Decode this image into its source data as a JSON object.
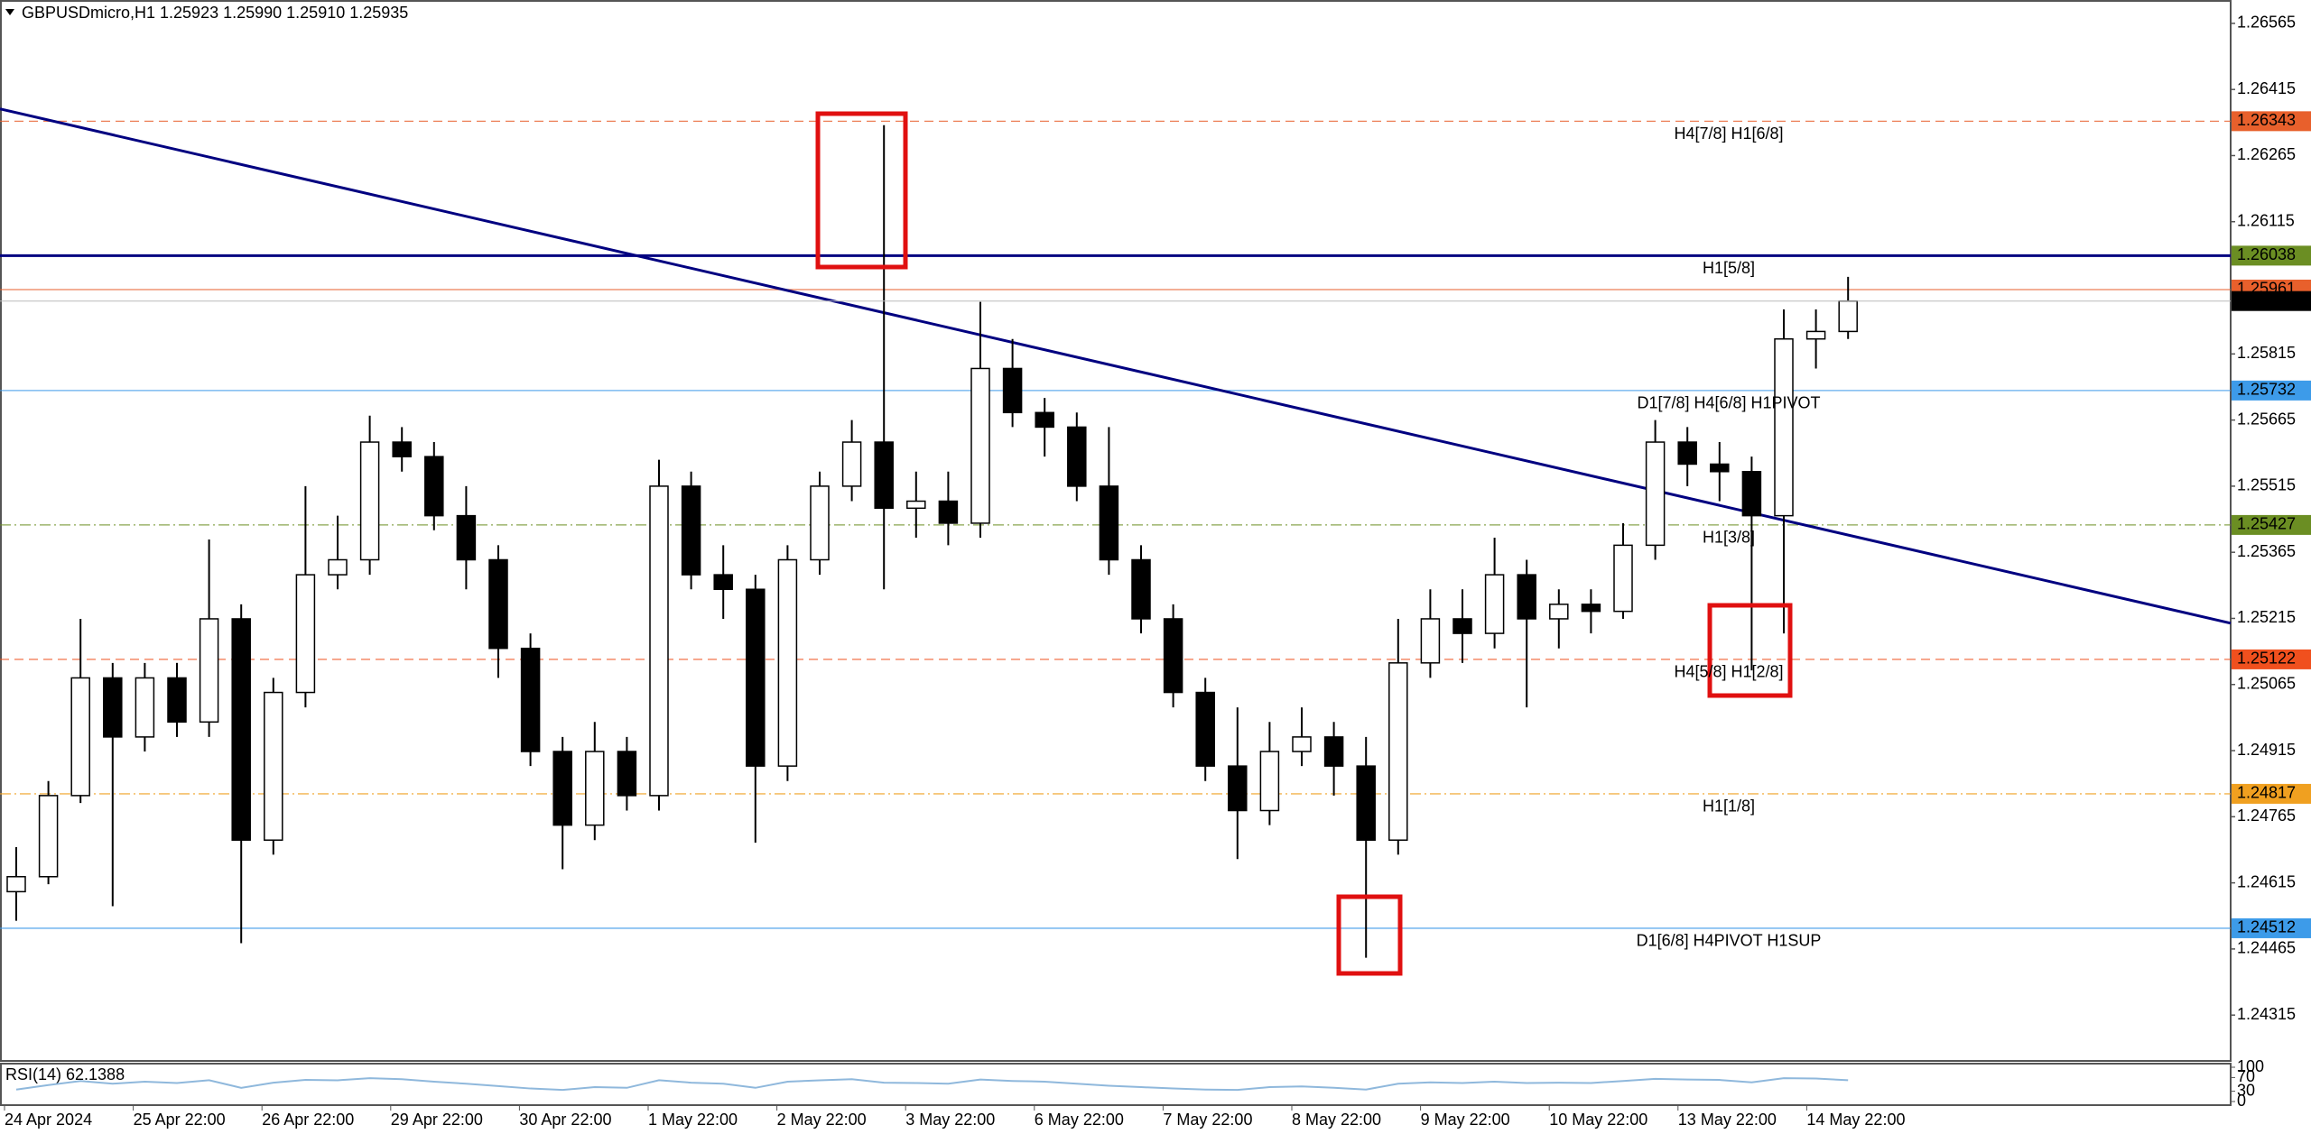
{
  "chart_data": {
    "type": "candlestick",
    "header": "GBPUSDmicro,H1  1.25923 1.25990 1.25910 1.25935",
    "ylim": [
      1.24211,
      1.26618
    ],
    "yticks": [
      1.26565,
      1.26415,
      1.26265,
      1.26115,
      1.25815,
      1.25665,
      1.25515,
      1.25365,
      1.25215,
      1.25065,
      1.24915,
      1.24765,
      1.24615,
      1.24465,
      1.24315
    ],
    "x_labels": [
      "24 Apr 2024",
      "25 Apr 22:00",
      "26 Apr 22:00",
      "29 Apr 22:00",
      "30 Apr 22:00",
      "1 May 22:00",
      "2 May 22:00",
      "3 May 22:00",
      "6 May 22:00",
      "7 May 22:00",
      "8 May 22:00",
      "9 May 22:00",
      "10 May 22:00",
      "13 May 22:00",
      "14 May 22:00"
    ],
    "candles": [
      [
        1.24595,
        1.24696,
        1.24529,
        1.24629
      ],
      [
        1.24629,
        1.24846,
        1.24612,
        1.24813
      ],
      [
        1.24813,
        1.25214,
        1.24796,
        1.2508
      ],
      [
        1.2508,
        1.25114,
        1.24562,
        1.24946
      ],
      [
        1.24946,
        1.25114,
        1.24913,
        1.2508
      ],
      [
        1.2508,
        1.25114,
        1.24946,
        1.2498
      ],
      [
        1.2498,
        1.25394,
        1.24946,
        1.25214
      ],
      [
        1.25214,
        1.25247,
        1.24478,
        1.24712
      ],
      [
        1.24712,
        1.2508,
        1.24679,
        1.25047
      ],
      [
        1.25047,
        1.25515,
        1.25013,
        1.25314
      ],
      [
        1.25314,
        1.25448,
        1.25281,
        1.25348
      ],
      [
        1.25348,
        1.25675,
        1.25314,
        1.25615
      ],
      [
        1.25615,
        1.25649,
        1.25548,
        1.25582
      ],
      [
        1.25582,
        1.25615,
        1.25415,
        1.25448
      ],
      [
        1.25448,
        1.25515,
        1.25281,
        1.25348
      ],
      [
        1.25348,
        1.25381,
        1.2508,
        1.25147
      ],
      [
        1.25147,
        1.25181,
        1.2488,
        1.24913
      ],
      [
        1.24913,
        1.24946,
        1.24646,
        1.24746
      ],
      [
        1.24746,
        1.2498,
        1.24712,
        1.24913
      ],
      [
        1.24913,
        1.24946,
        1.24779,
        1.24813
      ],
      [
        1.24813,
        1.25575,
        1.24779,
        1.25515
      ],
      [
        1.25515,
        1.25548,
        1.25281,
        1.25314
      ],
      [
        1.25314,
        1.25381,
        1.25214,
        1.25281
      ],
      [
        1.25281,
        1.25314,
        1.24706,
        1.2488
      ],
      [
        1.2488,
        1.25381,
        1.24846,
        1.25348
      ],
      [
        1.25348,
        1.25548,
        1.25314,
        1.25515
      ],
      [
        1.25515,
        1.25665,
        1.25481,
        1.25615
      ],
      [
        1.25615,
        1.26334,
        1.25281,
        1.25465
      ],
      [
        1.25465,
        1.25548,
        1.25398,
        1.25481
      ],
      [
        1.25481,
        1.25548,
        1.25381,
        1.25431
      ],
      [
        1.25431,
        1.25933,
        1.25398,
        1.25782
      ],
      [
        1.25782,
        1.25849,
        1.25649,
        1.25682
      ],
      [
        1.25682,
        1.25715,
        1.25582,
        1.25649
      ],
      [
        1.25649,
        1.25682,
        1.25481,
        1.25515
      ],
      [
        1.25515,
        1.25649,
        1.25314,
        1.25348
      ],
      [
        1.25348,
        1.25381,
        1.25181,
        1.25214
      ],
      [
        1.25214,
        1.25247,
        1.25013,
        1.25047
      ],
      [
        1.25047,
        1.2508,
        1.24846,
        1.2488
      ],
      [
        1.2488,
        1.25013,
        1.24669,
        1.24779
      ],
      [
        1.24779,
        1.2498,
        1.24746,
        1.24913
      ],
      [
        1.24913,
        1.25013,
        1.2488,
        1.24946
      ],
      [
        1.24946,
        1.2498,
        1.24813,
        1.2488
      ],
      [
        1.2488,
        1.24946,
        1.24445,
        1.24712
      ],
      [
        1.24712,
        1.25214,
        1.24679,
        1.25114
      ],
      [
        1.25114,
        1.25281,
        1.2508,
        1.25214
      ],
      [
        1.25214,
        1.25281,
        1.25114,
        1.25181
      ],
      [
        1.25181,
        1.25398,
        1.25147,
        1.25314
      ],
      [
        1.25314,
        1.25348,
        1.25013,
        1.25214
      ],
      [
        1.25214,
        1.25281,
        1.25147,
        1.25247
      ],
      [
        1.25247,
        1.25281,
        1.25181,
        1.25231
      ],
      [
        1.25231,
        1.25431,
        1.25214,
        1.25381
      ],
      [
        1.25381,
        1.25665,
        1.25348,
        1.25615
      ],
      [
        1.25615,
        1.25649,
        1.25515,
        1.25565
      ],
      [
        1.25565,
        1.25615,
        1.25481,
        1.25548
      ],
      [
        1.25548,
        1.25582,
        1.25097,
        1.25448
      ],
      [
        1.25448,
        1.25916,
        1.25181,
        1.25849
      ],
      [
        1.25849,
        1.25916,
        1.25782,
        1.25866
      ],
      [
        1.25866,
        1.2599,
        1.25849,
        1.25935
      ]
    ],
    "up_color": "#ffffff",
    "down_color": "#000000",
    "trendline": {
      "start": 1.26371,
      "end": 1.25204,
      "color": "#000080"
    },
    "levels": [
      {
        "value": 1.26343,
        "label": "H4[7/8] H1[6/8]",
        "color": "#e8602c",
        "dash": "10,6"
      },
      {
        "value": 1.26038,
        "label": "H1[5/8]",
        "color": "#6b8e23",
        "line_color": "#000080"
      },
      {
        "value": 1.25961,
        "color": "#e8602c"
      },
      {
        "value": 1.25732,
        "label": "D1[7/8] H4[6/8] H1PIVOT",
        "color": "#3d9be9"
      },
      {
        "value": 1.25427,
        "label": "H1[3/8]",
        "color": "#6b8e23",
        "dash": "12,4,2,4"
      },
      {
        "value": 1.25122,
        "label": "H4[5/8] H1[2/8]",
        "color": "#f0501e",
        "dash": "10,6"
      },
      {
        "value": 1.24817,
        "label": "H1[1/8]",
        "color": "#f0a020",
        "dash": "12,4,2,4"
      },
      {
        "value": 1.24512,
        "label": "D1[6/8] H4PIVOT H1SUP",
        "color": "#3d9be9"
      }
    ],
    "last_price": 1.25935,
    "rsi": {
      "label": "RSI(14) 62.1388",
      "color": "#8fb8dc",
      "ylim": [
        0,
        100
      ],
      "yticks": [
        100,
        70,
        30,
        0
      ],
      "values": [
        35,
        48,
        60,
        52,
        58,
        54,
        62,
        40,
        55,
        63,
        62,
        68,
        65,
        58,
        52,
        45,
        38,
        34,
        42,
        40,
        62,
        55,
        52,
        40,
        58,
        62,
        65,
        55,
        54,
        52,
        64,
        60,
        58,
        52,
        46,
        42,
        38,
        35,
        34,
        42,
        44,
        40,
        35,
        52,
        56,
        54,
        58,
        54,
        55,
        54,
        60,
        66,
        64,
        63,
        56,
        68,
        67,
        62.1388
      ]
    }
  }
}
